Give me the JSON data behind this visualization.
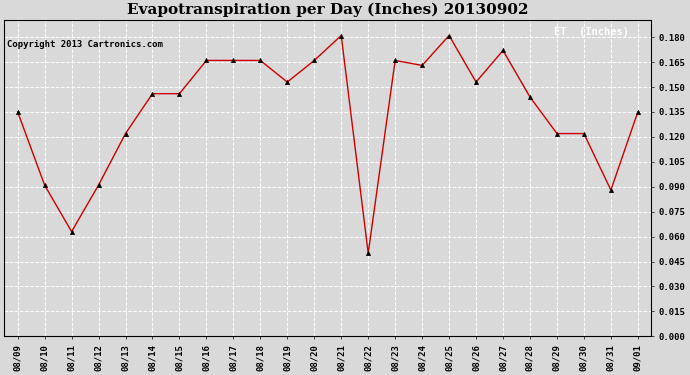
{
  "title": "Evapotranspiration per Day (Inches) 20130902",
  "copyright": "Copyright 2013 Cartronics.com",
  "legend_label": "ET  (Inches)",
  "x_labels": [
    "08/09",
    "08/10",
    "08/11",
    "08/12",
    "08/13",
    "08/14",
    "08/15",
    "08/16",
    "08/17",
    "08/18",
    "08/19",
    "08/20",
    "08/21",
    "08/22",
    "08/23",
    "08/24",
    "08/25",
    "08/26",
    "08/27",
    "08/28",
    "08/29",
    "08/30",
    "08/31",
    "09/01"
  ],
  "y_values": [
    0.135,
    0.091,
    0.063,
    0.091,
    0.122,
    0.146,
    0.146,
    0.166,
    0.166,
    0.166,
    0.153,
    0.166,
    0.181,
    0.05,
    0.166,
    0.163,
    0.181,
    0.153,
    0.172,
    0.144,
    0.122,
    0.122,
    0.088,
    0.135
  ],
  "line_color": "#cc0000",
  "marker": "^",
  "marker_color": "#000000",
  "marker_size": 3,
  "background_color": "#d9d9d9",
  "plot_bg_color": "#d9d9d9",
  "grid_color": "#ffffff",
  "ylim": [
    0.0,
    0.1905
  ],
  "yticks": [
    0.0,
    0.015,
    0.03,
    0.045,
    0.06,
    0.075,
    0.09,
    0.105,
    0.12,
    0.135,
    0.15,
    0.165,
    0.18
  ],
  "legend_bg": "#cc0000",
  "legend_text_color": "#ffffff",
  "title_fontsize": 11,
  "copyright_fontsize": 6.5,
  "tick_fontsize": 6.5,
  "legend_fontsize": 7.5
}
